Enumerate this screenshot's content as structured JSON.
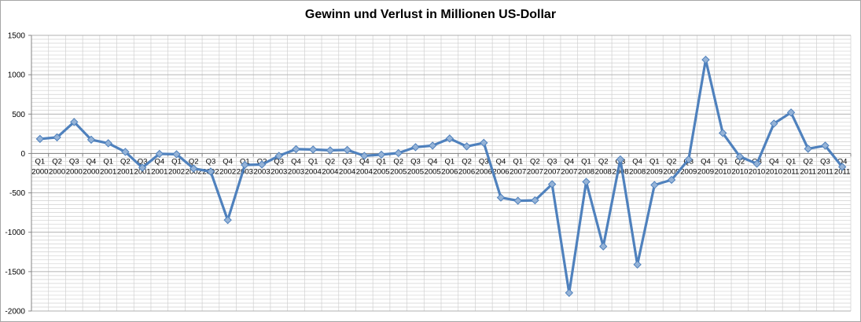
{
  "chart_data": {
    "type": "line",
    "title": "Gewinn und Verlust in Millionen US-Dollar",
    "xlabel": "",
    "ylabel": "",
    "ylim": [
      -2000,
      1500
    ],
    "yticks": [
      1500,
      1000,
      500,
      0,
      -500,
      -1000,
      -1500,
      -2000
    ],
    "grid": true,
    "legend": "none",
    "categories": [
      [
        "Q1",
        "2000"
      ],
      [
        "Q2",
        "2000"
      ],
      [
        "Q3",
        "2000"
      ],
      [
        "Q4",
        "2000"
      ],
      [
        "Q1",
        "2001"
      ],
      [
        "Q2",
        "2001"
      ],
      [
        "Q3",
        "2001"
      ],
      [
        "Q4",
        "2001"
      ],
      [
        "Q1",
        "2002"
      ],
      [
        "Q2",
        "2002"
      ],
      [
        "Q3",
        "2002"
      ],
      [
        "Q4",
        "2002"
      ],
      [
        "Q1",
        "2003"
      ],
      [
        "Q2",
        "2003"
      ],
      [
        "Q3",
        "2003"
      ],
      [
        "Q4",
        "2003"
      ],
      [
        "Q1",
        "2004"
      ],
      [
        "Q2",
        "2004"
      ],
      [
        "Q3",
        "2004"
      ],
      [
        "Q4",
        "2004"
      ],
      [
        "Q1",
        "2005"
      ],
      [
        "Q2",
        "2005"
      ],
      [
        "Q3",
        "2005"
      ],
      [
        "Q4",
        "2005"
      ],
      [
        "Q1",
        "2006"
      ],
      [
        "Q2",
        "2006"
      ],
      [
        "Q3",
        "2006"
      ],
      [
        "Q4",
        "2006"
      ],
      [
        "Q1",
        "2007"
      ],
      [
        "Q2",
        "2007"
      ],
      [
        "Q3",
        "2007"
      ],
      [
        "Q4",
        "2007"
      ],
      [
        "Q1",
        "2008"
      ],
      [
        "Q2",
        "2008"
      ],
      [
        "Q3",
        "2008"
      ],
      [
        "Q4",
        "2008"
      ],
      [
        "Q1",
        "2009"
      ],
      [
        "Q2",
        "2009"
      ],
      [
        "Q3",
        "2009"
      ],
      [
        "Q4",
        "2009"
      ],
      [
        "Q1",
        "2010"
      ],
      [
        "Q2",
        "2010"
      ],
      [
        "Q3",
        "2010"
      ],
      [
        "Q4",
        "2010"
      ],
      [
        "Q1",
        "2011"
      ],
      [
        "Q2",
        "2011"
      ],
      [
        "Q3",
        "2011"
      ],
      [
        "Q4",
        "2011"
      ]
    ],
    "series": [
      {
        "values": [
          185,
          205,
          400,
          175,
          130,
          20,
          -180,
          -5,
          -10,
          -190,
          -230,
          -845,
          -145,
          -140,
          -30,
          55,
          50,
          40,
          45,
          -30,
          -15,
          5,
          80,
          100,
          190,
          90,
          135,
          -560,
          -600,
          -595,
          -390,
          -1770,
          -360,
          -1180,
          -75,
          -1410,
          -400,
          -335,
          -75,
          1190,
          260,
          -40,
          -130,
          380,
          520,
          60,
          100,
          -170
        ],
        "color": "#4f81bd"
      }
    ],
    "colors": {
      "line": "#4f81bd",
      "marker_fill": "#95b3d7",
      "marker_stroke": "#4f81bd",
      "grid": "#d0d0d0",
      "axis": "#868686"
    }
  }
}
